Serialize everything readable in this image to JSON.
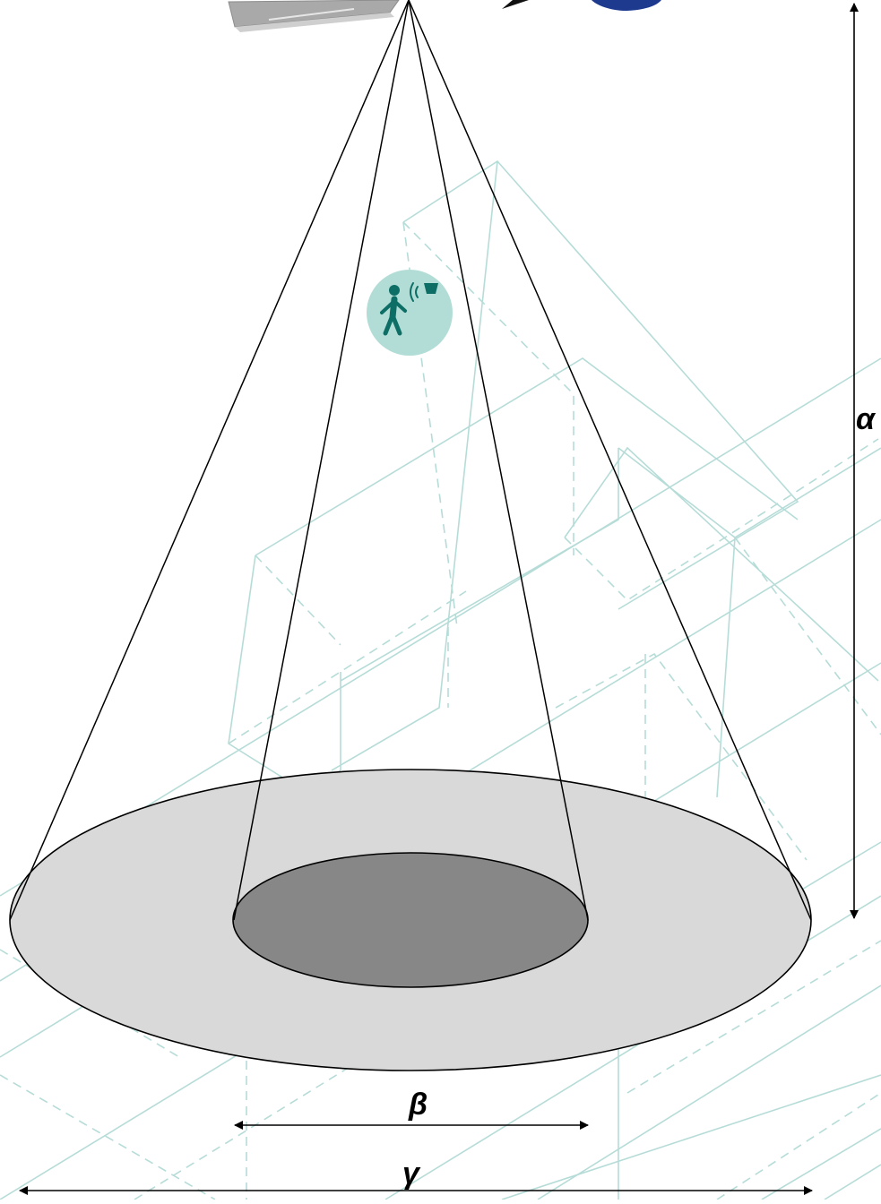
{
  "labels": {
    "alpha": "α",
    "beta": "β",
    "gamma": "γ"
  },
  "icons": {
    "sensor": "motion-sensor-icon",
    "person": "walking-person-icon",
    "signal": "detection-signal-icon"
  },
  "colors": {
    "outer_zone": "#d9d9d9",
    "inner_zone": "#878787",
    "background_lines": "#b6dcd8",
    "badge_fill": "#b2ddd6",
    "badge_icon": "#0d6e66",
    "fixture": "#a9a9a9",
    "logo_blue": "#1d3a8f"
  }
}
